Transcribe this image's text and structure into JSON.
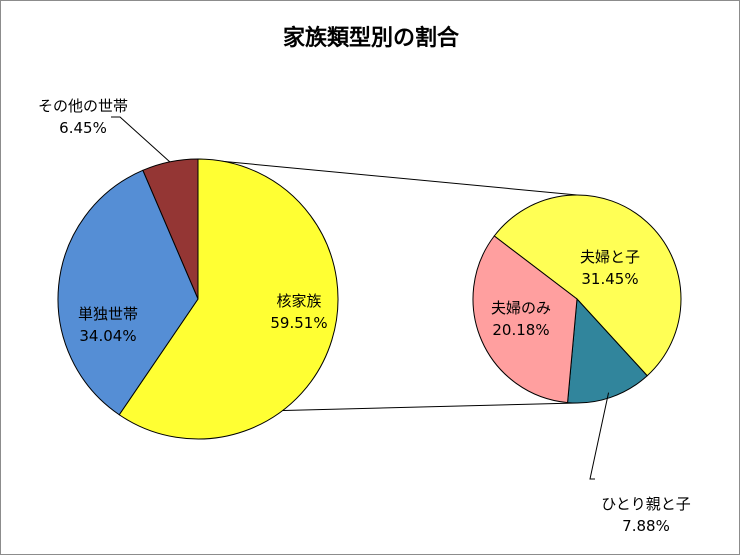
{
  "chart_data": {
    "type": "pie",
    "subtype": "pie-of-pie",
    "title": "家族類型別の割合",
    "slices": [
      {
        "label": "その他の世帯",
        "percent_label": "6.45%",
        "value": 6.45,
        "color": "#943634"
      },
      {
        "label": "核家族",
        "percent_label": "59.51%",
        "value": 59.51,
        "color": "#ffff33"
      },
      {
        "label": "単独世帯",
        "percent_label": "34.04%",
        "value": 34.04,
        "color": "#558ed5"
      }
    ],
    "breakdown": {
      "of": "核家族",
      "slices": [
        {
          "label": "夫婦と子",
          "percent_label": "31.45%",
          "value": 31.45,
          "color": "#ffff55"
        },
        {
          "label": "ひとり親と子",
          "percent_label": "7.88%",
          "value": 7.88,
          "color": "#31859c"
        },
        {
          "label": "夫婦のみ",
          "percent_label": "20.18%",
          "value": 20.18,
          "color": "#ff9f9f"
        }
      ]
    },
    "legend": "none"
  }
}
